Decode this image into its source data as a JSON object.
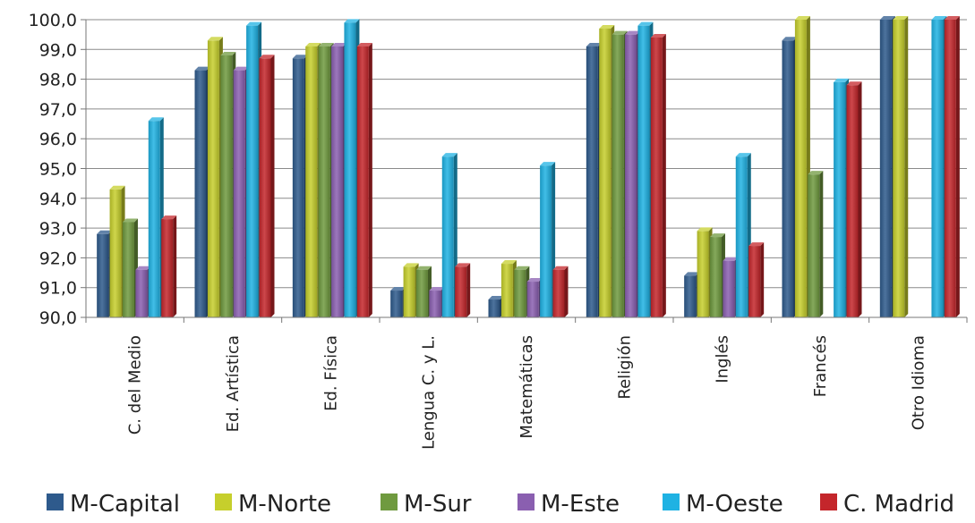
{
  "chart_data": {
    "type": "bar",
    "title": "",
    "xlabel": "",
    "ylabel": "",
    "ylim": [
      90,
      100
    ],
    "y_ticks": [
      "90,0",
      "91,0",
      "92,0",
      "93,0",
      "94,0",
      "95,0",
      "96,0",
      "97,0",
      "98,0",
      "99,0",
      "100,0"
    ],
    "grid": true,
    "legend_position": "bottom",
    "categories": [
      "C. del Medio",
      "Ed. Artística",
      "Ed. Física",
      "Lengua C. y L.",
      "Matemáticas",
      "Religión",
      "Inglés",
      "Francés",
      "Otro Idioma"
    ],
    "series": [
      {
        "name": "M-Capital",
        "color": "#2e5a8c",
        "values": [
          92.8,
          98.3,
          98.7,
          90.9,
          90.6,
          99.1,
          91.4,
          99.3,
          100.0
        ]
      },
      {
        "name": "M-Norte",
        "color": "#c6cf2c",
        "values": [
          94.3,
          99.3,
          99.1,
          91.7,
          91.8,
          99.7,
          92.9,
          100.0,
          100.0
        ]
      },
      {
        "name": "M-Sur",
        "color": "#6f9a3f",
        "values": [
          93.2,
          98.8,
          99.1,
          91.6,
          91.6,
          99.5,
          92.7,
          94.8,
          null
        ]
      },
      {
        "name": "M-Este",
        "color": "#8a5fb0",
        "values": [
          91.6,
          98.3,
          99.1,
          90.9,
          91.2,
          99.5,
          91.9,
          null,
          null
        ]
      },
      {
        "name": "M-Oeste",
        "color": "#1fb2e3",
        "values": [
          96.6,
          99.8,
          99.9,
          95.4,
          95.1,
          99.8,
          95.4,
          97.9,
          100.0
        ]
      },
      {
        "name": "C. Madrid",
        "color": "#c4262b",
        "values": [
          93.3,
          98.7,
          99.1,
          91.7,
          91.6,
          99.4,
          92.4,
          97.8,
          100.0
        ]
      }
    ]
  }
}
